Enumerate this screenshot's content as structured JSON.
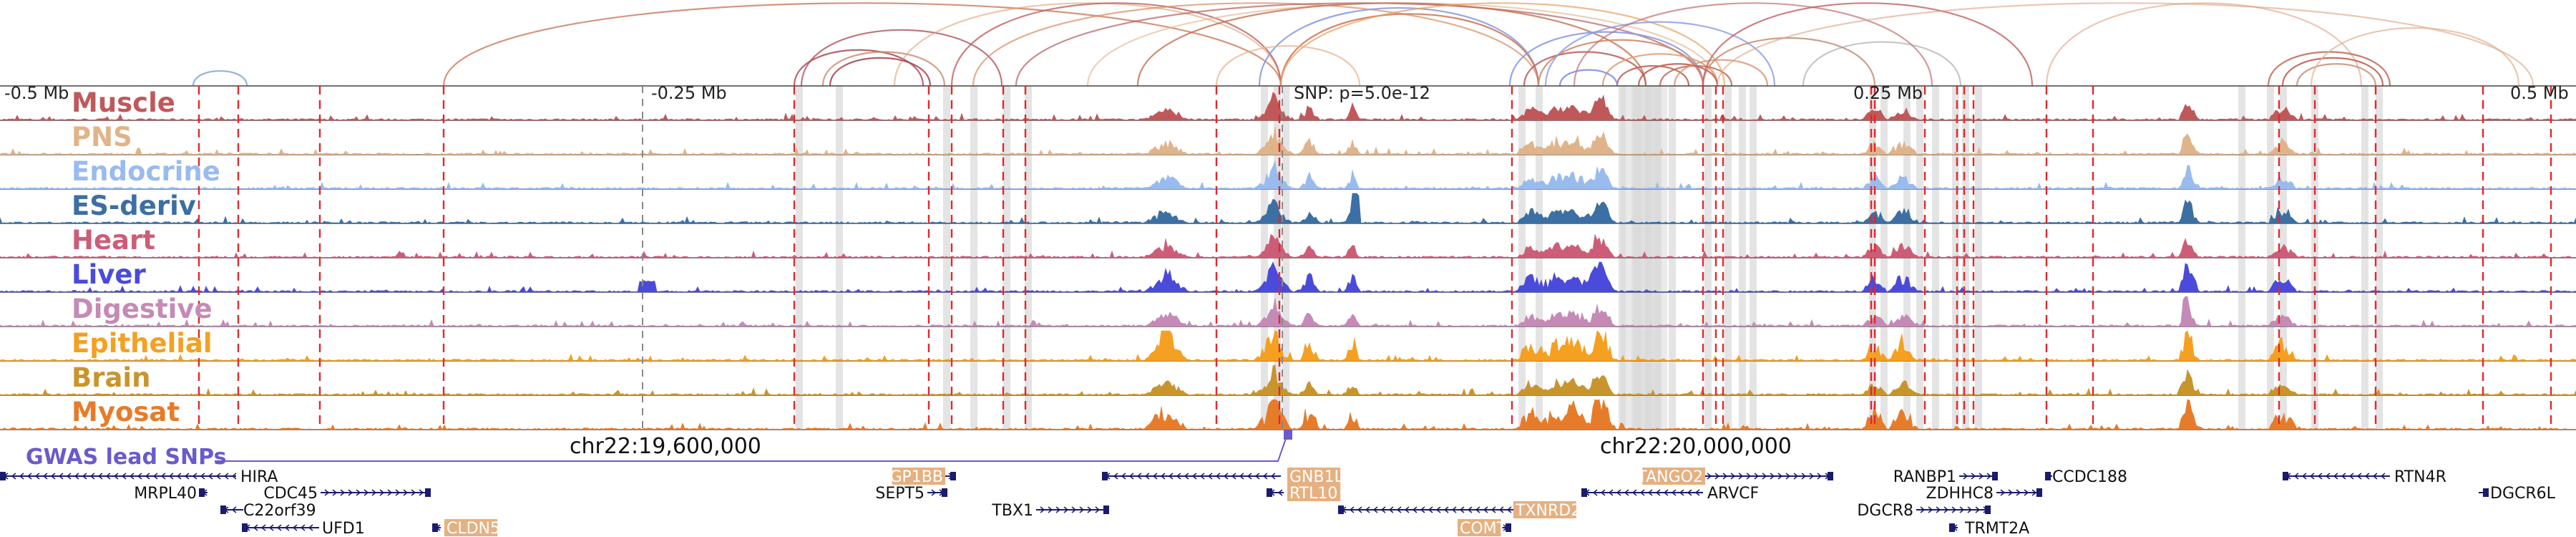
{
  "axis": {
    "range_labels": [
      {
        "id": "left-end",
        "text": "-0.5 Mb",
        "pos": -0.5
      },
      {
        "id": "left-quarter",
        "text": "-0.25 Mb",
        "pos": -0.25
      },
      {
        "id": "right-quarter",
        "text": "0.25 Mb",
        "pos": 0.25
      },
      {
        "id": "right-end",
        "text": "0.5 Mb",
        "pos": 0.5
      }
    ],
    "snp_label": "SNP: p=5.0e-12"
  },
  "tracks": [
    {
      "name": "Muscle",
      "color": "#c0585a"
    },
    {
      "name": "PNS",
      "color": "#e0b48a"
    },
    {
      "name": "Endocrine",
      "color": "#99bbee"
    },
    {
      "name": "ES-deriv",
      "color": "#3c6fa3"
    },
    {
      "name": "Heart",
      "color": "#cc5d78"
    },
    {
      "name": "Liver",
      "color": "#4a4adb"
    },
    {
      "name": "Digestive",
      "color": "#c58ab6"
    },
    {
      "name": "Epithelial",
      "color": "#f5a020"
    },
    {
      "name": "Brain",
      "color": "#c8952d"
    },
    {
      "name": "Myosat",
      "color": "#e67c2a"
    }
  ],
  "gwas": {
    "label": "GWAS lead SNPs",
    "color": "#6a5acd"
  },
  "coordinates": [
    "chr22:19,600,000",
    "chr22:20,000,000"
  ],
  "genes": [
    {
      "name": "HIRA",
      "highlight": false
    },
    {
      "name": "MRPL40",
      "highlight": false
    },
    {
      "name": "CDC45",
      "highlight": false
    },
    {
      "name": "C22orf39",
      "highlight": false
    },
    {
      "name": "UFD1",
      "highlight": false
    },
    {
      "name": "CLDN5",
      "highlight": true
    },
    {
      "name": "GP1BB",
      "highlight": true
    },
    {
      "name": "SEPT5",
      "highlight": false
    },
    {
      "name": "TBX1",
      "highlight": false
    },
    {
      "name": "GNB1L",
      "highlight": true
    },
    {
      "name": "RTL10",
      "highlight": true
    },
    {
      "name": "TXNRD2",
      "highlight": true
    },
    {
      "name": "COMT",
      "highlight": true
    },
    {
      "name": "TANGO2",
      "highlight": true
    },
    {
      "name": "ARVCF",
      "highlight": false
    },
    {
      "name": "RANBP1",
      "highlight": false
    },
    {
      "name": "CCDC188",
      "highlight": false
    },
    {
      "name": "ZDHHC8",
      "highlight": false
    },
    {
      "name": "DGCR8",
      "highlight": false
    },
    {
      "name": "TRMT2A",
      "highlight": false
    },
    {
      "name": "RTN4R",
      "highlight": false
    },
    {
      "name": "DGCR6L",
      "highlight": false
    }
  ],
  "colors": {
    "snp_line": "#e0282c",
    "highlight_band": "#d9d9d9",
    "arc_warm": "#c97a5a",
    "arc_blue": "#8c9be0",
    "gene": "#1a1a6e",
    "gene_highlight_bg": "#e6b080"
  }
}
